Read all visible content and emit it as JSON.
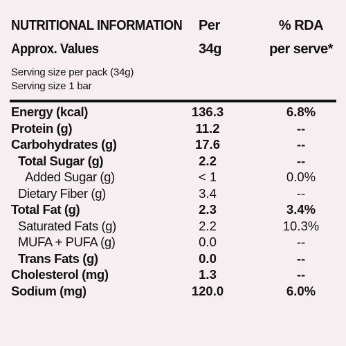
{
  "header": {
    "title": "NUTRITIONAL INFORMATION",
    "subtitle": "Approx. Values",
    "per_label": "Per",
    "per_value": "34g",
    "rda_label": "% RDA",
    "rda_sub": "per serve*"
  },
  "serving": {
    "line1": "Serving size per pack (34g)",
    "line2": "Serving size 1 bar"
  },
  "rows": [
    {
      "name": "Energy (kcal)",
      "per": "136.3",
      "rda": "6.8%",
      "bold": true,
      "indent": 0
    },
    {
      "name": "Protein (g)",
      "per": "11.2",
      "rda": "--",
      "bold": true,
      "indent": 0
    },
    {
      "name": "Carbohydrates (g)",
      "per": "17.6",
      "rda": "--",
      "bold": true,
      "indent": 0
    },
    {
      "name": "Total Sugar (g)",
      "per": "2.2",
      "rda": "--",
      "bold": true,
      "indent": 1
    },
    {
      "name": "Added Sugar (g)",
      "per": "< 1",
      "rda": "0.0%",
      "bold": false,
      "indent": 2
    },
    {
      "name": "Dietary Fiber (g)",
      "per": "3.4",
      "rda": "--",
      "bold": false,
      "indent": 1
    },
    {
      "name": "Total Fat (g)",
      "per": "2.3",
      "rda": "3.4%",
      "bold": true,
      "indent": 0
    },
    {
      "name": "Saturated Fats (g)",
      "per": "2.2",
      "rda": "10.3%",
      "bold": false,
      "indent": 1
    },
    {
      "name": "MUFA + PUFA (g)",
      "per": "0.0",
      "rda": "--",
      "bold": false,
      "indent": 1
    },
    {
      "name": "Trans Fats (g)",
      "per": "0.0",
      "rda": "--",
      "bold": true,
      "indent": 1
    },
    {
      "name": "Cholesterol (mg)",
      "per": "1.3",
      "rda": "--",
      "bold": true,
      "indent": 0
    },
    {
      "name": "Sodium (mg)",
      "per": "120.0",
      "rda": "6.0%",
      "bold": true,
      "indent": 0
    }
  ]
}
